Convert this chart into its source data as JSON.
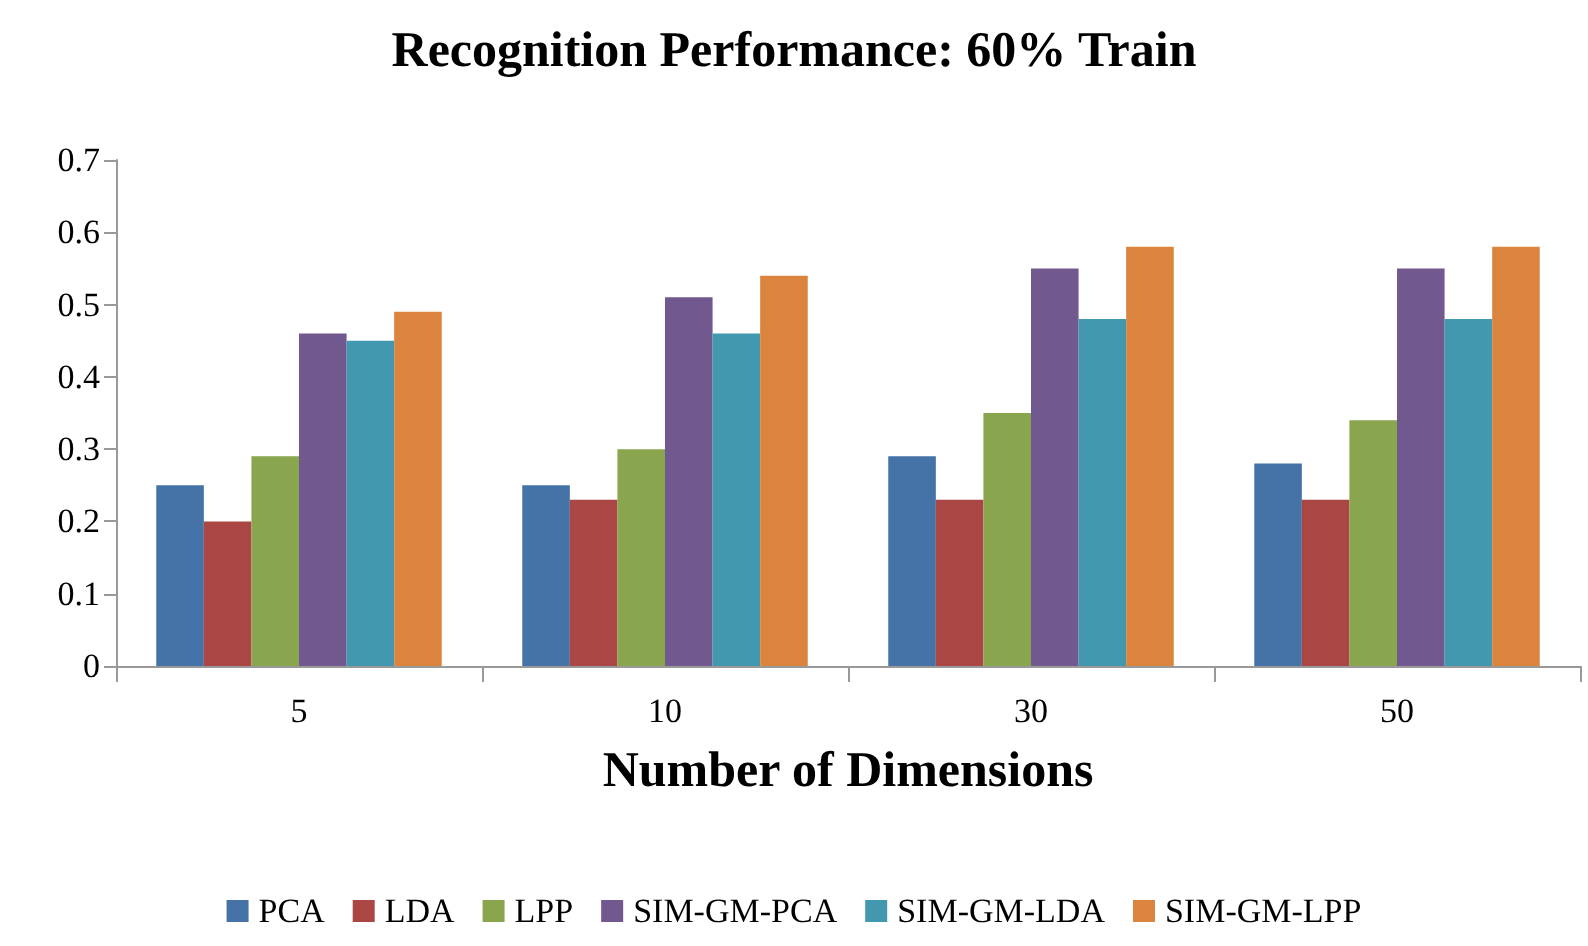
{
  "chart_data": {
    "type": "bar",
    "title": "Recognition Performance: 60% Train",
    "xlabel": "Number of Dimensions",
    "categories": [
      "5",
      "10",
      "30",
      "50"
    ],
    "series": [
      {
        "name": "PCA",
        "color": "#4572a7",
        "values": [
          0.25,
          0.25,
          0.29,
          0.28
        ]
      },
      {
        "name": "LDA",
        "color": "#aa4643",
        "values": [
          0.2,
          0.23,
          0.23,
          0.23
        ]
      },
      {
        "name": "LPP",
        "color": "#89a54e",
        "values": [
          0.29,
          0.3,
          0.35,
          0.34
        ]
      },
      {
        "name": "SIM-GM-PCA",
        "color": "#71588f",
        "values": [
          0.46,
          0.51,
          0.55,
          0.55
        ]
      },
      {
        "name": "SIM-GM-LDA",
        "color": "#4198af",
        "values": [
          0.45,
          0.46,
          0.48,
          0.48
        ]
      },
      {
        "name": "SIM-GM-LPP",
        "color": "#db843d",
        "values": [
          0.49,
          0.54,
          0.58,
          0.58
        ]
      }
    ],
    "ylim": [
      0,
      0.7
    ],
    "yticks": [
      0,
      0.1,
      0.2,
      0.3,
      0.4,
      0.5,
      0.6,
      0.7
    ],
    "grid": false,
    "legend": "bottom"
  }
}
